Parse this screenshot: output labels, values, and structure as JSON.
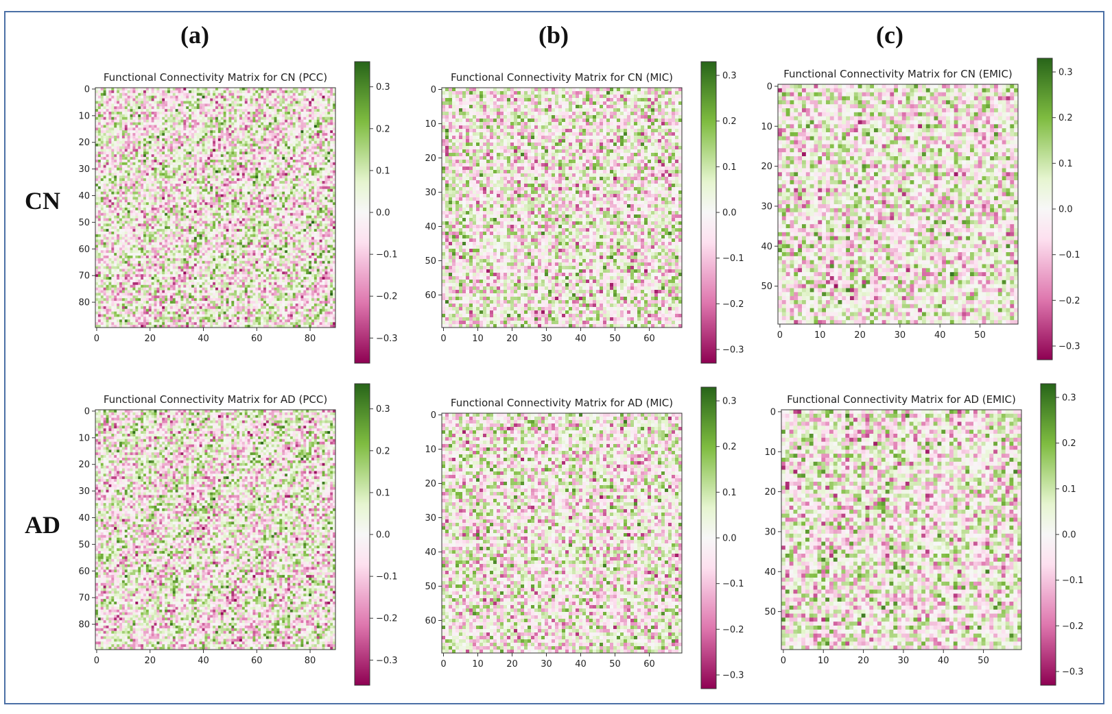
{
  "column_labels": [
    "(a)",
    "(b)",
    "(c)"
  ],
  "row_labels": [
    "CN",
    "AD"
  ],
  "colors": {
    "negative_end": "#8e0152",
    "neg_mid": "#de77ae",
    "neg_light": "#fde0ef",
    "center": "#f7f7f7",
    "pos_light": "#e6f5d0",
    "pos_mid": "#7fbc41",
    "positive_end": "#276419",
    "frame": "#4a6fa5"
  },
  "chart_data": [
    {
      "type": "heatmap",
      "title": "Functional Connectivity Matrix for CN (PCC)",
      "group": "CN",
      "method": "PCC",
      "size": 90,
      "xticks": [
        0,
        20,
        40,
        60,
        80
      ],
      "yticks": [
        0,
        10,
        20,
        30,
        40,
        50,
        60,
        70,
        80
      ],
      "vmin": -0.36,
      "vmax": 0.36,
      "cbar_ticks": [
        0.3,
        0.2,
        0.1,
        0.0,
        -0.1,
        -0.2,
        -0.3
      ],
      "cbar_labels": [
        "0.3",
        "0.2",
        "0.1",
        "0.0",
        "−0.1",
        "−0.2",
        "−0.3"
      ]
    },
    {
      "type": "heatmap",
      "title": "Functional Connectivity Matrix for CN (MIC)",
      "group": "CN",
      "method": "MIC",
      "size": 70,
      "xticks": [
        0,
        10,
        20,
        30,
        40,
        50,
        60
      ],
      "yticks": [
        0,
        10,
        20,
        30,
        40,
        50,
        60
      ],
      "vmin": -0.33,
      "vmax": 0.33,
      "cbar_ticks": [
        0.3,
        0.2,
        0.1,
        0.0,
        -0.1,
        -0.2,
        -0.3
      ],
      "cbar_labels": [
        "0.3",
        "0.2",
        "0.1",
        "0.0",
        "−0.1",
        "−0.2",
        "−0.3"
      ]
    },
    {
      "type": "heatmap",
      "title": "Functional Connectivity Matrix for CN (EMIC)",
      "group": "CN",
      "method": "EMIC",
      "size": 60,
      "xticks": [
        0,
        10,
        20,
        30,
        40,
        50
      ],
      "yticks": [
        0,
        10,
        20,
        30,
        40,
        50
      ],
      "vmin": -0.33,
      "vmax": 0.33,
      "cbar_ticks": [
        0.3,
        0.2,
        0.1,
        0.0,
        -0.1,
        -0.2,
        -0.3
      ],
      "cbar_labels": [
        "0.3",
        "0.2",
        "0.1",
        "0.0",
        "−0.1",
        "−0.2",
        "−0.3"
      ]
    },
    {
      "type": "heatmap",
      "title": "Functional Connectivity Matrix for AD (PCC)",
      "group": "AD",
      "method": "PCC",
      "size": 90,
      "xticks": [
        0,
        20,
        40,
        60,
        80
      ],
      "yticks": [
        0,
        10,
        20,
        30,
        40,
        50,
        60,
        70,
        80
      ],
      "vmin": -0.36,
      "vmax": 0.36,
      "cbar_ticks": [
        0.3,
        0.2,
        0.1,
        0.0,
        -0.1,
        -0.2,
        -0.3
      ],
      "cbar_labels": [
        "0.3",
        "0.2",
        "0.1",
        "0.0",
        "−0.1",
        "−0.2",
        "−0.3"
      ]
    },
    {
      "type": "heatmap",
      "title": "Functional Connectivity Matrix for AD (MIC)",
      "group": "AD",
      "method": "MIC",
      "size": 70,
      "xticks": [
        0,
        10,
        20,
        30,
        40,
        50,
        60
      ],
      "yticks": [
        0,
        10,
        20,
        30,
        40,
        50,
        60
      ],
      "vmin": -0.33,
      "vmax": 0.33,
      "cbar_ticks": [
        0.3,
        0.2,
        0.1,
        0.0,
        -0.1,
        -0.2,
        -0.3
      ],
      "cbar_labels": [
        "0.3",
        "0.2",
        "0.1",
        "0.0",
        "−0.1",
        "−0.2",
        "−0.3"
      ]
    },
    {
      "type": "heatmap",
      "title": "Functional Connectivity Matrix for AD (EMIC)",
      "group": "AD",
      "method": "EMIC",
      "size": 60,
      "xticks": [
        0,
        10,
        20,
        30,
        40,
        50
      ],
      "yticks": [
        0,
        10,
        20,
        30,
        40,
        50
      ],
      "vmin": -0.33,
      "vmax": 0.33,
      "cbar_ticks": [
        0.3,
        0.2,
        0.1,
        0.0,
        -0.1,
        -0.2,
        -0.3
      ],
      "cbar_labels": [
        "0.3",
        "0.2",
        "0.1",
        "0.0",
        "−0.1",
        "−0.2",
        "−0.3"
      ]
    }
  ]
}
